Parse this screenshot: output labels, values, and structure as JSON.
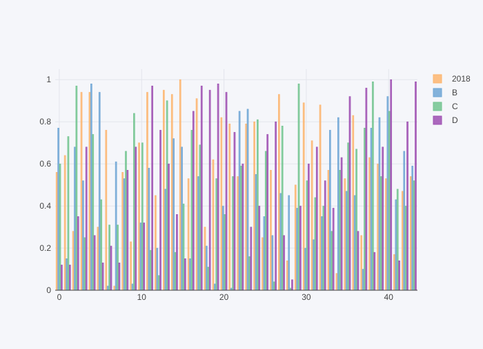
{
  "chart_data": {
    "type": "bar",
    "x": [
      0,
      1,
      2,
      3,
      4,
      5,
      6,
      7,
      8,
      9,
      10,
      11,
      12,
      13,
      14,
      15,
      16,
      17,
      18,
      19,
      20,
      21,
      22,
      23,
      24,
      25,
      26,
      27,
      28,
      29,
      30,
      31,
      32,
      33,
      34,
      35,
      36,
      37,
      38,
      39,
      40,
      41,
      42,
      43
    ],
    "xlim": [
      -0.5,
      43.5
    ],
    "ylim": [
      0,
      1.05
    ],
    "x_ticks": [
      0,
      10,
      20,
      30,
      40
    ],
    "y_ticks": [
      0,
      0.2,
      0.4,
      0.6,
      0.8,
      1
    ],
    "x_tick_labels": [
      "0",
      "10",
      "20",
      "30",
      "40"
    ],
    "y_tick_labels": [
      "0",
      "0.2",
      "0.4",
      "0.6",
      "0.8",
      "1"
    ],
    "grid": true,
    "legend_position": "top-right",
    "series": [
      {
        "name": "2018",
        "color": "#fdb56f",
        "values": [
          0.56,
          0.64,
          0.28,
          0.94,
          0.94,
          0.3,
          0.76,
          0.02,
          0.56,
          0.23,
          0.7,
          0.94,
          0.45,
          0.95,
          0.93,
          1.0,
          0.53,
          0.91,
          0.3,
          0.62,
          0.82,
          0.79,
          0.54,
          0.79,
          0.8,
          0.25,
          0.57,
          0.93,
          0.14,
          0.5,
          0.89,
          0.71,
          0.88,
          0.57,
          0.08,
          0.53,
          0.83,
          0.26,
          0.63,
          0.6,
          0.53,
          0.17,
          0.47,
          0.54
        ]
      },
      {
        "name": "B",
        "color": "#6fa6d5",
        "values": [
          0.77,
          0.15,
          0.68,
          0.52,
          0.98,
          0.94,
          0.02,
          0.61,
          0.53,
          0.03,
          0.32,
          0.58,
          0.2,
          0.48,
          0.72,
          0.68,
          0.15,
          0.54,
          0.21,
          0.03,
          0.4,
          0.01,
          0.85,
          0.86,
          0.55,
          0.35,
          0.26,
          0.46,
          0.45,
          0.39,
          0.2,
          0.24,
          0.35,
          0.76,
          0.82,
          0.47,
          0.45,
          0.1,
          0.77,
          0.82,
          0.92,
          0.43,
          0.66,
          0.59
        ]
      },
      {
        "name": "C",
        "color": "#72c48f",
        "values": [
          0.6,
          0.73,
          0.97,
          0.25,
          0.74,
          0.43,
          0.31,
          0.31,
          0.66,
          0.84,
          0.7,
          0.19,
          0.07,
          0.9,
          0.18,
          0.41,
          0.76,
          0.69,
          0.11,
          0.53,
          0.36,
          0.54,
          0.59,
          0.16,
          0.81,
          0.66,
          0.04,
          0.78,
          0.01,
          0.98,
          0.52,
          0.44,
          0.4,
          0.28,
          0.57,
          0.7,
          0.67,
          0.77,
          0.99,
          0.54,
          0.85,
          0.48,
          0.4,
          0.52
        ]
      },
      {
        "name": "D",
        "color": "#9e4fb1",
        "values": [
          0.12,
          0.12,
          0.35,
          0.68,
          0.26,
          0.13,
          0.21,
          0.13,
          0.57,
          0.68,
          0.32,
          0.97,
          0.76,
          0.6,
          0.36,
          0.15,
          0.85,
          0.97,
          0.95,
          0.98,
          0.94,
          0.75,
          0.6,
          0.3,
          0.4,
          0.74,
          0.8,
          0.26,
          0.05,
          0.4,
          0.6,
          0.68,
          0.52,
          0.39,
          0.63,
          0.92,
          0.28,
          0.96,
          0.18,
          0.68,
          1.0,
          0.14,
          0.8,
          0.99
        ]
      }
    ]
  }
}
